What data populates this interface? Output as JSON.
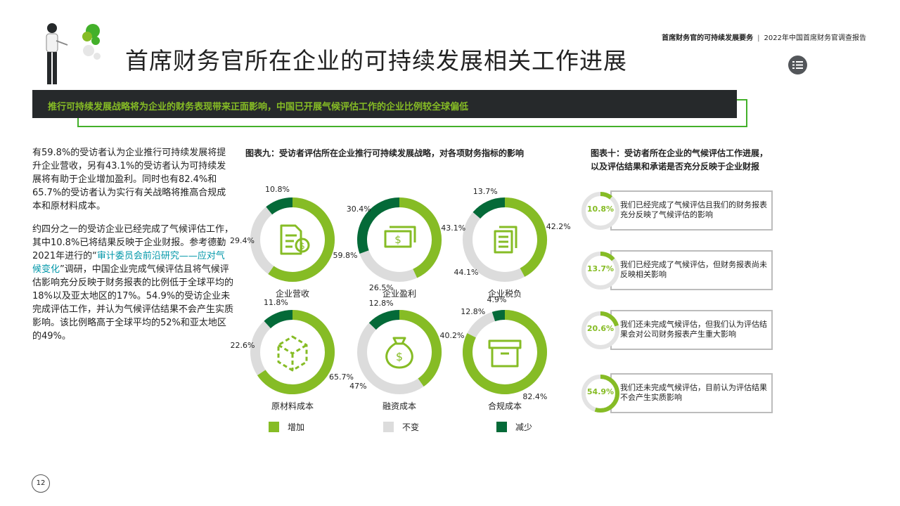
{
  "header": {
    "report_section": "首席财务官的可持续发展要务",
    "separator": "|",
    "report_title": "2022年中国首席财务官调查报告"
  },
  "page_title": "首席财务官所在企业的可持续发展相关工作进展",
  "banner": "推行可持续发展战略将为企业的财务表现带来正面影响，中国已开展气候评估工作的企业比例较全球偏低",
  "body": {
    "p1": "有59.8%的受访者认为企业推行可持续发展将提升企业营收，另有43.1%的受访者认为可持续发展将有助于企业增加盈利。同时也有82.4%和65.7%的受访者认为实行有关战略将推高合规成本和原材料成本。",
    "p2_before": "约四分之一的受访企业已经完成了气候评估工作，其中10.8%已将结果反映于企业财报。参考德勤2021年进行的“",
    "p2_link": "审计委员会前沿研究——应对气候变化",
    "p2_after": "”调研，中国企业完成气候评估且将气候评估影响充分反映于财务报表的比例低于全球平均的18%以及亚太地区的17%。54.9%的受访企业未完成评估工作，并认为气候评估结果不会产生实质影响。该比例略高于全球平均的52%和亚太地区的49%。"
  },
  "chart_data": [
    {
      "type": "donut",
      "title": "图表九：受访者评估所在企业推行可持续发展战略，对各项财务指标的影响",
      "legend": [
        {
          "label": "增加",
          "color": "#86bc25"
        },
        {
          "label": "不变",
          "color": "#dcdcdc"
        },
        {
          "label": "减少",
          "color": "#046a38"
        }
      ],
      "donuts": [
        {
          "category": "企业营收",
          "icon": "document-dollar-icon",
          "increase": 59.8,
          "unchanged": 29.4,
          "decrease": 10.8,
          "labels": {
            "increase": "59.8%",
            "unchanged": "29.4%",
            "decrease": "10.8%"
          }
        },
        {
          "category": "企业盈利",
          "icon": "cash-icon",
          "increase": 43.1,
          "unchanged": 26.5,
          "decrease": 30.4,
          "labels": {
            "increase": "43.1%",
            "unchanged": "26.5%",
            "decrease": "30.4%"
          }
        },
        {
          "category": "企业税负",
          "icon": "documents-icon",
          "increase": 42.2,
          "unchanged": 44.1,
          "decrease": 13.7,
          "labels": {
            "increase": "42.2%",
            "unchanged": "44.1%",
            "decrease": "13.7%"
          }
        },
        {
          "category": "原材料成本",
          "icon": "cube-icon",
          "increase": 65.7,
          "unchanged": 22.6,
          "decrease": 11.8,
          "labels": {
            "increase": "65.7%",
            "unchanged": "22.6%",
            "decrease": "11.8%"
          }
        },
        {
          "category": "融资成本",
          "icon": "money-bag-icon",
          "increase": 40.2,
          "unchanged": 47,
          "decrease": 12.8,
          "labels": {
            "increase": "40.2%",
            "unchanged": "47%",
            "decrease": "12.8%"
          }
        },
        {
          "category": "合规成本",
          "icon": "box-icon",
          "increase": 82.4,
          "unchanged": 12.8,
          "decrease": 4.9,
          "labels": {
            "increase": "82.4%",
            "unchanged": "12.8%",
            "decrease": "4.9%"
          }
        }
      ]
    },
    {
      "type": "progress-rings",
      "title_line1": "图表十：受访者所在企业的气候评估工作进展，",
      "title_line2": "以及评估结果和承诺是否充分反映于企业财报",
      "items": [
        {
          "value": 10.8,
          "label": "10.8%",
          "text": "我们已经完成了气候评估且我们的财务报表充分反映了气候评估的影响"
        },
        {
          "value": 13.7,
          "label": "13.7%",
          "text": "我们已经完成了气候评估，但财务报表尚未反映相关影响"
        },
        {
          "value": 20.6,
          "label": "20.6%",
          "text": "我们还未完成气候评估，但我们认为评估结果会对公司财务报表产生重大影响"
        },
        {
          "value": 54.9,
          "label": "54.9%",
          "text": "我们还未完成气候评估，目前认为评估结果不会产生实质影响"
        }
      ]
    }
  ],
  "page_number": "12",
  "colors": {
    "increase": "#86bc25",
    "unchanged": "#dcdcdc",
    "decrease": "#046a38",
    "banner_bg": "#26292b",
    "link": "#0097a9"
  }
}
